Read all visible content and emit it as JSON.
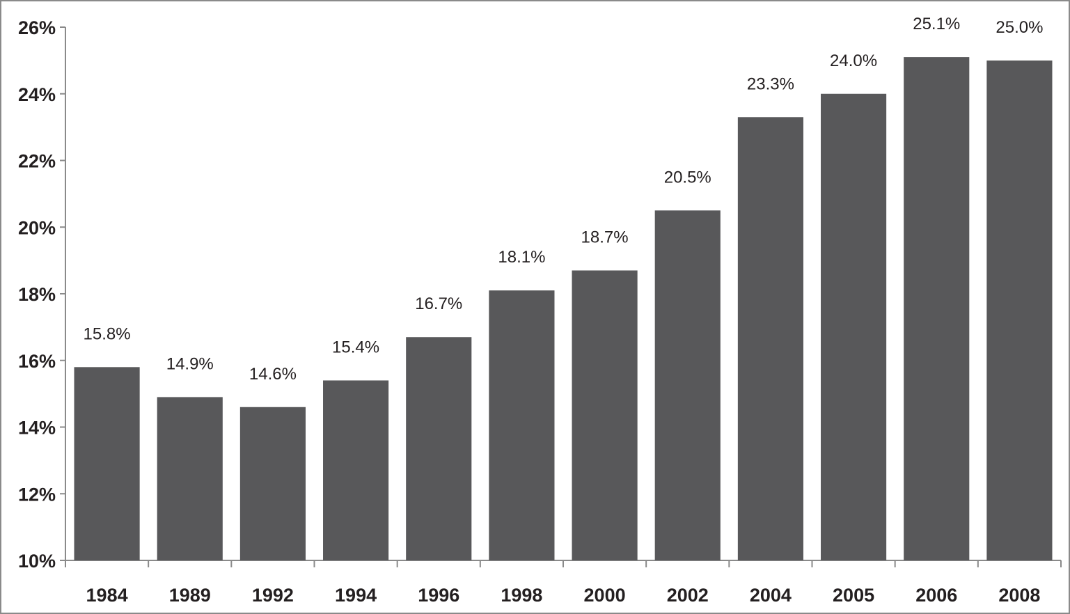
{
  "chart_data": {
    "type": "bar",
    "title": "",
    "xlabel": "",
    "ylabel": "",
    "categories": [
      "1984",
      "1989",
      "1992",
      "1994",
      "1996",
      "1998",
      "2000",
      "2002",
      "2004",
      "2005",
      "2006",
      "2008"
    ],
    "values": [
      15.8,
      14.9,
      14.6,
      15.4,
      16.7,
      18.1,
      18.7,
      20.5,
      23.3,
      24.0,
      25.1,
      25.0
    ],
    "data_labels": [
      "15.8%",
      "14.9%",
      "14.6%",
      "15.4%",
      "16.7%",
      "18.1%",
      "18.7%",
      "20.5%",
      "23.3%",
      "24.0%",
      "25.1%",
      "25.0%"
    ],
    "ylim": [
      10,
      26
    ],
    "yticks": [
      10,
      12,
      14,
      16,
      18,
      20,
      22,
      24,
      26
    ],
    "ytick_labels": [
      "10%",
      "12%",
      "14%",
      "16%",
      "18%",
      "20%",
      "22%",
      "24%",
      "26%"
    ],
    "grid": false,
    "legend": "none",
    "bar_color": "#58585a",
    "axis_color": "#8a8a8a",
    "text_color": "#231f20"
  }
}
